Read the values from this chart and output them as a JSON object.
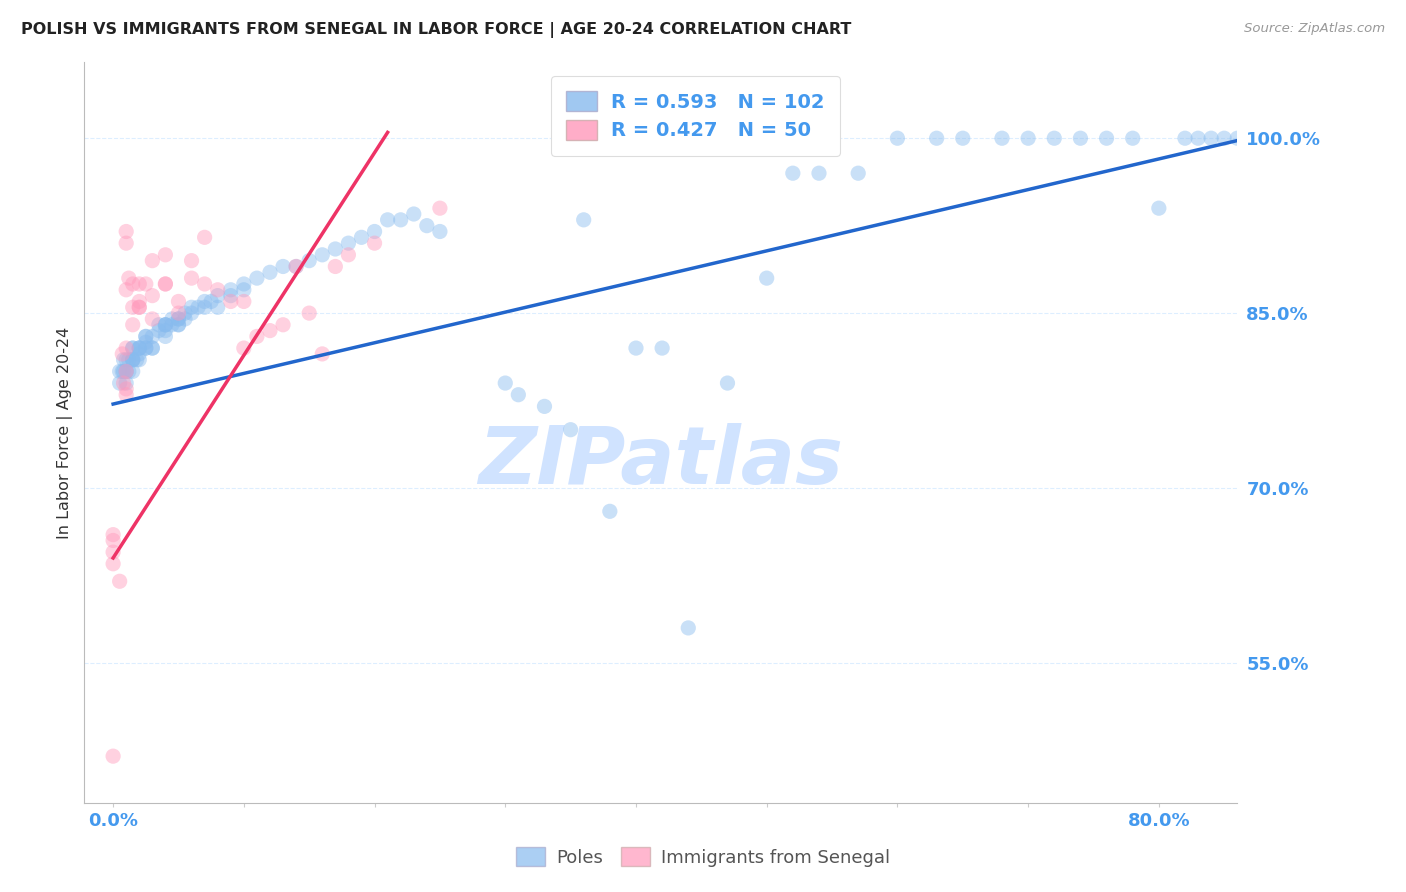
{
  "title": "POLISH VS IMMIGRANTS FROM SENEGAL IN LABOR FORCE | AGE 20-24 CORRELATION CHART",
  "source": "Source: ZipAtlas.com",
  "ylabel": "In Labor Force | Age 20-24",
  "x_tick_labels": [
    "0.0%",
    "",
    "",
    "",
    "",
    "",
    "",
    "",
    "80.0%"
  ],
  "x_tick_vals": [
    0.0,
    0.1,
    0.2,
    0.3,
    0.4,
    0.5,
    0.6,
    0.7,
    0.8
  ],
  "y_tick_labels": [
    "55.0%",
    "70.0%",
    "85.0%",
    "100.0%"
  ],
  "y_tick_vals": [
    0.55,
    0.7,
    0.85,
    1.0
  ],
  "xlim": [
    -0.022,
    0.86
  ],
  "ylim": [
    0.43,
    1.065
  ],
  "blue_color": "#88BBEE",
  "pink_color": "#FF99BB",
  "trend_blue": "#2266CC",
  "trend_pink": "#EE3366",
  "legend_blue_R": "0.593",
  "legend_blue_N": "102",
  "legend_pink_R": "0.427",
  "legend_pink_N": "50",
  "watermark": "ZIPatlas",
  "watermark_color": "#C8DEFF",
  "title_color": "#222222",
  "axis_color": "#4499EE",
  "grid_color": "#DDEEFF",
  "blue_dots_x": [
    0.005,
    0.005,
    0.007,
    0.008,
    0.008,
    0.01,
    0.01,
    0.01,
    0.01,
    0.012,
    0.012,
    0.015,
    0.015,
    0.015,
    0.015,
    0.015,
    0.015,
    0.018,
    0.02,
    0.02,
    0.02,
    0.02,
    0.02,
    0.025,
    0.025,
    0.025,
    0.025,
    0.025,
    0.03,
    0.03,
    0.03,
    0.035,
    0.035,
    0.04,
    0.04,
    0.04,
    0.04,
    0.04,
    0.045,
    0.045,
    0.05,
    0.05,
    0.05,
    0.05,
    0.055,
    0.055,
    0.06,
    0.06,
    0.065,
    0.07,
    0.07,
    0.075,
    0.08,
    0.08,
    0.09,
    0.09,
    0.1,
    0.1,
    0.11,
    0.12,
    0.13,
    0.14,
    0.15,
    0.16,
    0.17,
    0.18,
    0.19,
    0.2,
    0.21,
    0.22,
    0.23,
    0.24,
    0.25,
    0.3,
    0.31,
    0.33,
    0.35,
    0.36,
    0.38,
    0.4,
    0.42,
    0.44,
    0.47,
    0.5,
    0.52,
    0.54,
    0.57,
    0.6,
    0.63,
    0.65,
    0.68,
    0.7,
    0.72,
    0.74,
    0.76,
    0.78,
    0.8,
    0.82,
    0.83,
    0.84,
    0.85,
    0.86
  ],
  "blue_dots_y": [
    0.79,
    0.8,
    0.8,
    0.81,
    0.8,
    0.8,
    0.81,
    0.8,
    0.79,
    0.81,
    0.8,
    0.81,
    0.82,
    0.8,
    0.81,
    0.82,
    0.81,
    0.81,
    0.82,
    0.815,
    0.82,
    0.81,
    0.82,
    0.83,
    0.82,
    0.825,
    0.82,
    0.83,
    0.83,
    0.82,
    0.82,
    0.835,
    0.84,
    0.84,
    0.83,
    0.84,
    0.835,
    0.84,
    0.845,
    0.84,
    0.845,
    0.84,
    0.845,
    0.84,
    0.85,
    0.845,
    0.855,
    0.85,
    0.855,
    0.855,
    0.86,
    0.86,
    0.865,
    0.855,
    0.87,
    0.865,
    0.875,
    0.87,
    0.88,
    0.885,
    0.89,
    0.89,
    0.895,
    0.9,
    0.905,
    0.91,
    0.915,
    0.92,
    0.93,
    0.93,
    0.935,
    0.925,
    0.92,
    0.79,
    0.78,
    0.77,
    0.75,
    0.93,
    0.68,
    0.82,
    0.82,
    0.58,
    0.79,
    0.88,
    0.97,
    0.97,
    0.97,
    1.0,
    1.0,
    1.0,
    1.0,
    1.0,
    1.0,
    1.0,
    1.0,
    1.0,
    0.94,
    1.0,
    1.0,
    1.0,
    1.0,
    1.0
  ],
  "pink_dots_x": [
    0.0,
    0.0,
    0.0,
    0.0,
    0.0,
    0.005,
    0.007,
    0.008,
    0.01,
    0.01,
    0.01,
    0.01,
    0.01,
    0.01,
    0.01,
    0.012,
    0.015,
    0.015,
    0.015,
    0.02,
    0.02,
    0.02,
    0.02,
    0.025,
    0.03,
    0.03,
    0.03,
    0.04,
    0.04,
    0.04,
    0.05,
    0.05,
    0.06,
    0.06,
    0.07,
    0.07,
    0.08,
    0.09,
    0.1,
    0.1,
    0.11,
    0.12,
    0.13,
    0.14,
    0.15,
    0.16,
    0.17,
    0.18,
    0.2,
    0.25
  ],
  "pink_dots_y": [
    0.635,
    0.645,
    0.655,
    0.66,
    0.47,
    0.62,
    0.815,
    0.79,
    0.78,
    0.785,
    0.8,
    0.82,
    0.87,
    0.92,
    0.91,
    0.88,
    0.855,
    0.875,
    0.84,
    0.875,
    0.855,
    0.855,
    0.86,
    0.875,
    0.845,
    0.865,
    0.895,
    0.875,
    0.9,
    0.875,
    0.86,
    0.85,
    0.88,
    0.895,
    0.875,
    0.915,
    0.87,
    0.86,
    0.82,
    0.86,
    0.83,
    0.835,
    0.84,
    0.89,
    0.85,
    0.815,
    0.89,
    0.9,
    0.91,
    0.94
  ],
  "blue_trend_x": [
    0.0,
    0.86
  ],
  "blue_trend_y": [
    0.772,
    0.998
  ],
  "pink_trend_x": [
    0.0,
    0.21
  ],
  "pink_trend_y": [
    0.64,
    1.005
  ],
  "dot_size": 120,
  "dot_alpha": 0.45,
  "dot_linewidth": 0
}
